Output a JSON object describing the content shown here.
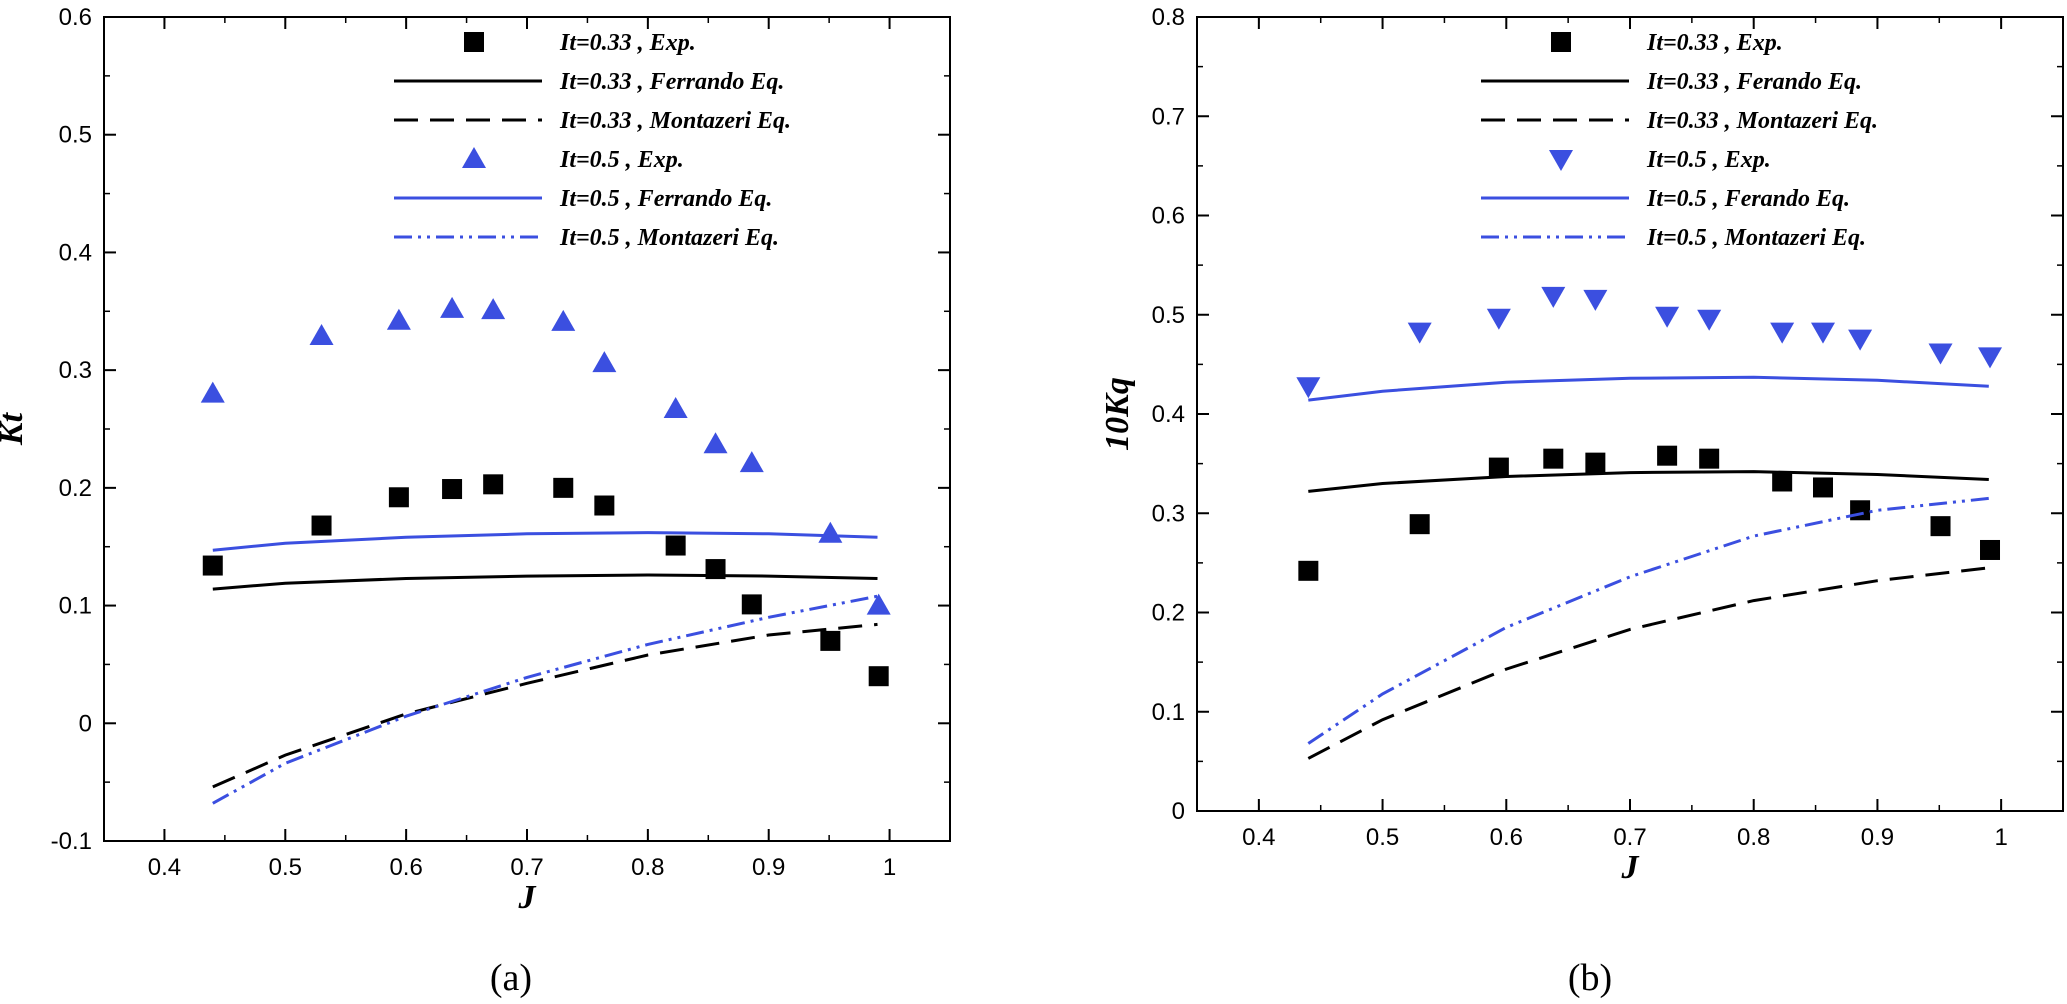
{
  "chart_data": [
    {
      "type": "line",
      "caption": "(a)",
      "xlabel": "J",
      "ylabel": "Kt",
      "xlim": [
        0.35,
        1.05
      ],
      "ylim": [
        -0.1,
        0.6
      ],
      "xticks": [
        "0.4",
        "0.5",
        "0.6",
        "0.7",
        "0.8",
        "0.9",
        "1"
      ],
      "yticks": [
        "-0.1",
        "0",
        "0.1",
        "0.2",
        "0.3",
        "0.4",
        "0.5",
        "0.6"
      ],
      "grid": false,
      "legend_position": "top-center",
      "series": [
        {
          "name": "It=0.33 , Exp.",
          "kind": "scatter",
          "marker": "square",
          "color": "#000000",
          "x": [
            0.44,
            0.53,
            0.594,
            0.638,
            0.672,
            0.73,
            0.764,
            0.823,
            0.856,
            0.886,
            0.951,
            0.991
          ],
          "y": [
            0.134,
            0.168,
            0.192,
            0.199,
            0.203,
            0.2,
            0.185,
            0.151,
            0.131,
            0.101,
            0.07,
            0.04
          ]
        },
        {
          "name": "It=0.33 , Ferrando Eq.",
          "kind": "line",
          "dash": "solid",
          "color": "#000000",
          "x": [
            0.44,
            0.5,
            0.6,
            0.7,
            0.8,
            0.9,
            0.99
          ],
          "y": [
            0.114,
            0.119,
            0.123,
            0.125,
            0.126,
            0.125,
            0.123
          ]
        },
        {
          "name": "It=0.33 , Montazeri Eq.",
          "kind": "line",
          "dash": "dashed",
          "color": "#000000",
          "x": [
            0.44,
            0.5,
            0.6,
            0.7,
            0.8,
            0.9,
            0.99
          ],
          "y": [
            -0.054,
            -0.027,
            0.008,
            0.034,
            0.058,
            0.075,
            0.084
          ]
        },
        {
          "name": "It=0.5 , Exp.",
          "kind": "scatter",
          "marker": "triangle-up",
          "color": "#3b4fe0",
          "x": [
            0.44,
            0.53,
            0.594,
            0.638,
            0.672,
            0.73,
            0.764,
            0.823,
            0.856,
            0.886,
            0.951,
            0.991
          ],
          "y": [
            0.28,
            0.329,
            0.342,
            0.352,
            0.351,
            0.341,
            0.306,
            0.267,
            0.237,
            0.221,
            0.161,
            0.1
          ]
        },
        {
          "name": "It=0.5 , Ferrando Eq.",
          "kind": "line",
          "dash": "solid",
          "color": "#3b4fe0",
          "x": [
            0.44,
            0.5,
            0.6,
            0.7,
            0.8,
            0.9,
            0.99
          ],
          "y": [
            0.147,
            0.153,
            0.158,
            0.161,
            0.162,
            0.161,
            0.158
          ]
        },
        {
          "name": "It=0.5 , Montazeri Eq.",
          "kind": "line",
          "dash": "dashdotdot",
          "color": "#3b4fe0",
          "x": [
            0.44,
            0.5,
            0.6,
            0.7,
            0.8,
            0.9,
            0.99
          ],
          "y": [
            -0.068,
            -0.034,
            0.006,
            0.039,
            0.067,
            0.09,
            0.108
          ]
        }
      ]
    },
    {
      "type": "line",
      "caption": "(b)",
      "xlabel": "J",
      "ylabel": "10Kq",
      "xlim": [
        0.35,
        1.05
      ],
      "ylim": [
        0,
        0.8
      ],
      "xticks": [
        "0.4",
        "0.5",
        "0.6",
        "0.7",
        "0.8",
        "0.9",
        "1"
      ],
      "yticks": [
        "0",
        "0.1",
        "0.2",
        "0.3",
        "0.4",
        "0.5",
        "0.6",
        "0.7",
        "0.8"
      ],
      "grid": false,
      "legend_position": "top-center",
      "series": [
        {
          "name": "It=0.33 , Exp.",
          "kind": "scatter",
          "marker": "square",
          "color": "#000000",
          "x": [
            0.44,
            0.53,
            0.594,
            0.638,
            0.672,
            0.73,
            0.764,
            0.823,
            0.856,
            0.886,
            0.951,
            0.991
          ],
          "y": [
            0.242,
            0.289,
            0.346,
            0.355,
            0.351,
            0.358,
            0.355,
            0.332,
            0.326,
            0.303,
            0.287,
            0.263
          ]
        },
        {
          "name": "It=0.33 , Ferando Eq.",
          "kind": "line",
          "dash": "solid",
          "color": "#000000",
          "x": [
            0.44,
            0.5,
            0.6,
            0.7,
            0.8,
            0.9,
            0.99
          ],
          "y": [
            0.322,
            0.33,
            0.337,
            0.341,
            0.342,
            0.339,
            0.334
          ]
        },
        {
          "name": "It=0.33 , Montazeri Eq.",
          "kind": "line",
          "dash": "dashed",
          "color": "#000000",
          "x": [
            0.44,
            0.5,
            0.6,
            0.7,
            0.8,
            0.9,
            0.99
          ],
          "y": [
            0.053,
            0.092,
            0.143,
            0.183,
            0.212,
            0.232,
            0.245
          ]
        },
        {
          "name": "It=0.5 , Exp.",
          "kind": "scatter",
          "marker": "triangle-down",
          "color": "#3b4fe0",
          "x": [
            0.44,
            0.53,
            0.594,
            0.638,
            0.672,
            0.73,
            0.764,
            0.823,
            0.856,
            0.886,
            0.951,
            0.991
          ],
          "y": [
            0.428,
            0.483,
            0.497,
            0.519,
            0.516,
            0.499,
            0.496,
            0.483,
            0.483,
            0.476,
            0.462,
            0.458
          ]
        },
        {
          "name": "It=0.5 , Ferando Eq.",
          "kind": "line",
          "dash": "solid",
          "color": "#3b4fe0",
          "x": [
            0.44,
            0.5,
            0.6,
            0.7,
            0.8,
            0.9,
            0.99
          ],
          "y": [
            0.414,
            0.423,
            0.432,
            0.436,
            0.437,
            0.434,
            0.428
          ]
        },
        {
          "name": "It=0.5 , Montazeri Eq.",
          "kind": "line",
          "dash": "dashdotdot",
          "color": "#3b4fe0",
          "x": [
            0.44,
            0.5,
            0.6,
            0.7,
            0.8,
            0.9,
            0.99
          ],
          "y": [
            0.068,
            0.118,
            0.185,
            0.236,
            0.277,
            0.303,
            0.315
          ]
        }
      ]
    }
  ]
}
